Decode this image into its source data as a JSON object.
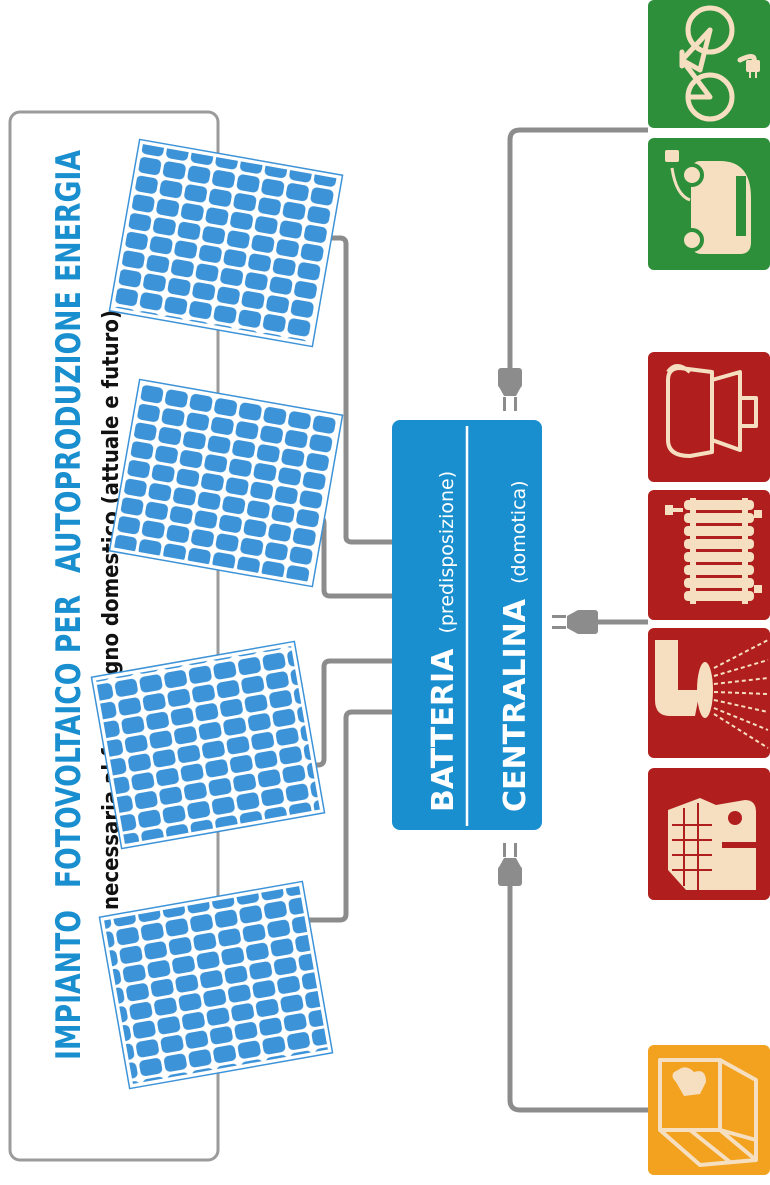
{
  "title": {
    "part1": "IMPIANTO",
    "part2": "FOTOVOLTAICO PER",
    "part3": "AUTOPRODUZIONE ENERGIA",
    "subtitle": "necessaria al fabbisogno domestico (attuale e futuro)"
  },
  "hub": {
    "line1_bold": "BATTERIA",
    "line1_light": "(predisposizione)",
    "line2_bold": "CENTRALINA",
    "line2_light": "(domotica)"
  },
  "devices": {
    "green": [
      "bicycle-icon",
      "electric-car-icon"
    ],
    "red": [
      "coffee-maker-icon",
      "radiator-icon",
      "shower-icon",
      "house-icon"
    ],
    "orange": [
      "laptop-icon"
    ]
  },
  "colors": {
    "blue": "#1a8fd0",
    "title_blue": "#1a8fd0",
    "panel": "#3d93d8",
    "green": "#2e8f3a",
    "red": "#b01e1e",
    "orange": "#f2a21e",
    "cream": "#f6dfc0",
    "wire": "#8c8c8c"
  }
}
